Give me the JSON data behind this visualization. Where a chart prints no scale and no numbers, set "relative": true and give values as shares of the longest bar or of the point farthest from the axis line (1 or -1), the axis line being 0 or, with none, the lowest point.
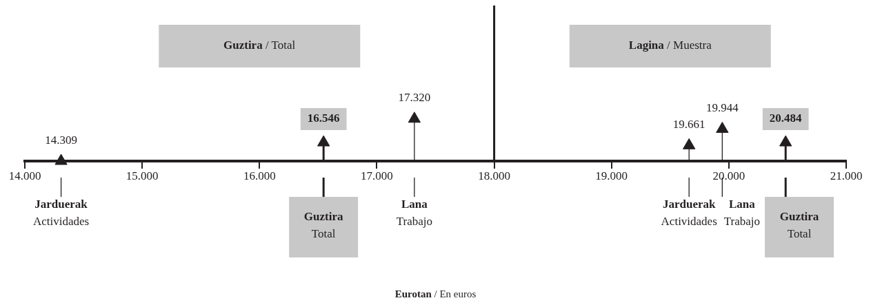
{
  "chart_data": {
    "type": "lollipop",
    "relative": true,
    "series": [
      {
        "x": [
          14309,
          17320,
          19661,
          19944
        ],
        "values": [
          0,
          1,
          0.37,
          0.76
        ],
        "color": "#231f20"
      },
      {
        "x": [
          16546,
          20484
        ],
        "values": [
          0.44,
          0.44
        ],
        "color": "#231f20"
      }
    ],
    "marker": "triangle",
    "xlim": [
      14000,
      21000
    ],
    "xticks": [
      {
        "value": 14000,
        "label": "14.000"
      },
      {
        "value": 15000,
        "label": "15.000"
      },
      {
        "value": 16000,
        "label": "16.000"
      },
      {
        "value": 17000,
        "label": "17.000"
      },
      {
        "value": 18000,
        "label": "18.000"
      },
      {
        "value": 19000,
        "label": "19.000"
      },
      {
        "value": 20000,
        "label": "20.000"
      },
      {
        "value": 21000,
        "label": "21.000"
      }
    ],
    "legend": false,
    "ref_lines": [
      {
        "axis": "x",
        "value": 18000
      }
    ],
    "annotations": [
      "Guztira / Total",
      "Lagina / Muestra",
      "14.309",
      "16.546",
      "17.320",
      "19.661",
      "19.944",
      "20.484",
      "Jarduerak\nActividades",
      "Guztira\nTotal",
      "Lana\nTrabajo",
      "Jarduerak\nActividades",
      "Lana\nTrabajo",
      "Guztira\nTotal",
      "Eurotan / En euros"
    ]
  }
}
